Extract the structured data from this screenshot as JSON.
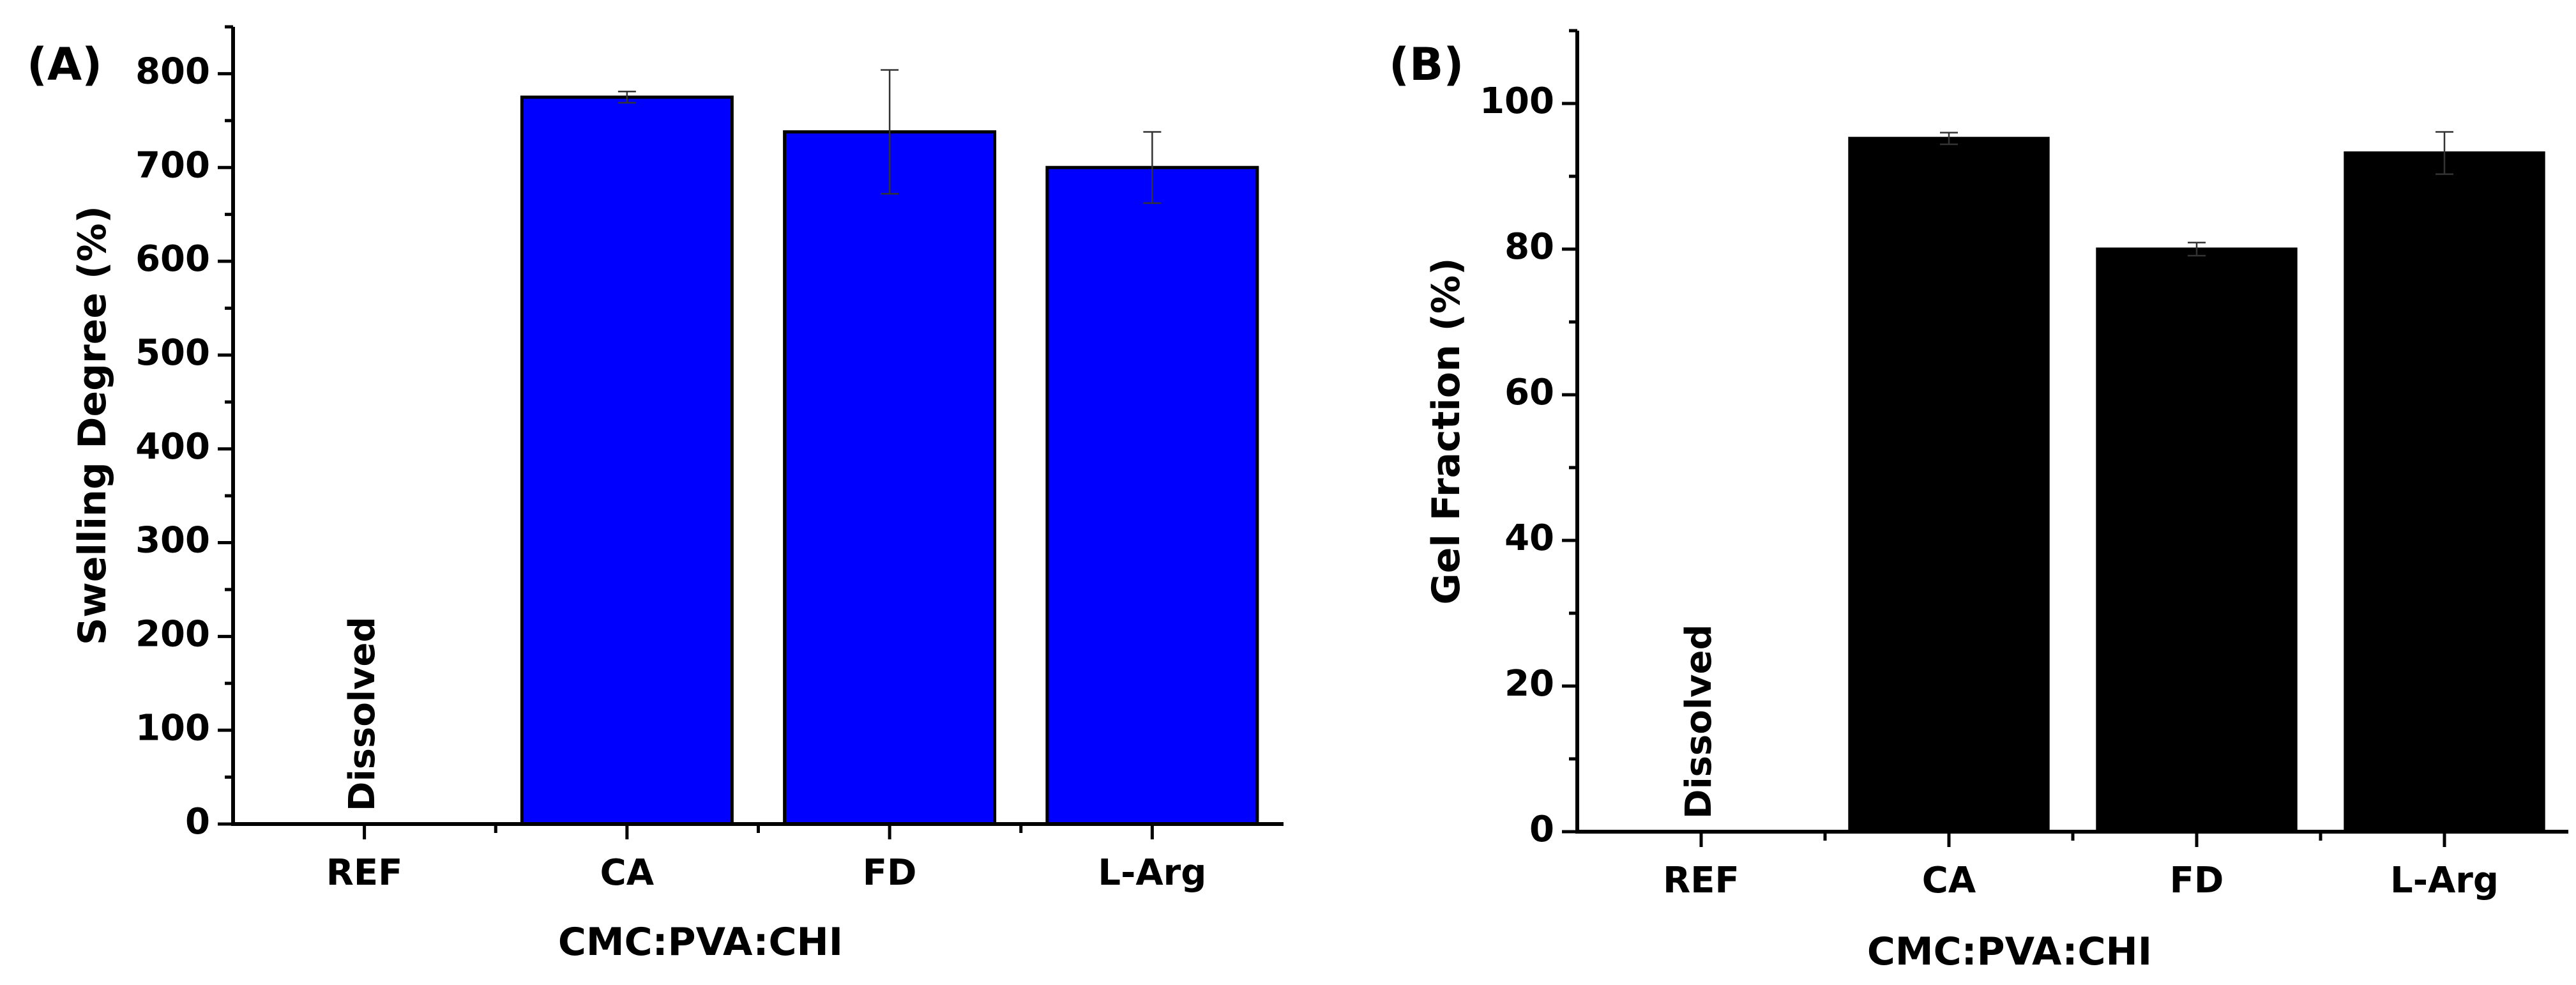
{
  "chart_data": [
    {
      "type": "bar",
      "panel_label": "(A)",
      "categories": [
        "REF",
        "CA",
        "FD",
        "L-Arg"
      ],
      "values": [
        null,
        775,
        738,
        700
      ],
      "errors": [
        null,
        6,
        66,
        38
      ],
      "annotations": [
        {
          "category": "REF",
          "text": "Dissolved"
        }
      ],
      "xlabel": "CMC:PVA:CHI",
      "ylabel": "Swelling Degree (%)",
      "ylim": [
        0,
        850
      ],
      "yticks": [
        0,
        100,
        200,
        300,
        400,
        500,
        600,
        700,
        800
      ],
      "bar_color": "#0000ff",
      "grid": false
    },
    {
      "type": "bar",
      "panel_label": "(B)",
      "categories": [
        "REF",
        "CA",
        "FD",
        "L-Arg"
      ],
      "values": [
        null,
        95.2,
        80,
        93.2
      ],
      "errors": [
        null,
        0.8,
        0.9,
        2.9
      ],
      "annotations": [
        {
          "category": "REF",
          "text": "Dissolved"
        }
      ],
      "xlabel": "CMC:PVA:CHI",
      "ylabel": "Gel Fraction (%)",
      "ylim": [
        0,
        110
      ],
      "yticks": [
        0,
        20,
        40,
        60,
        80,
        100
      ],
      "bar_color": "#000000",
      "grid": false
    }
  ]
}
